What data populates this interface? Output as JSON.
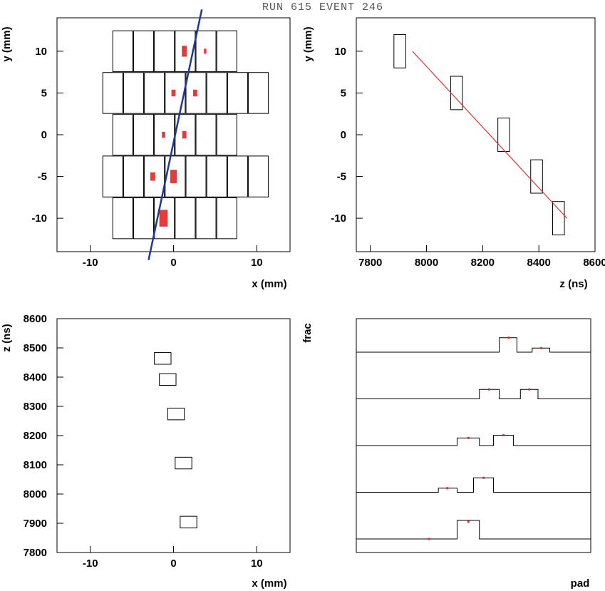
{
  "header": {
    "title": "RUN   615 EVENT   246"
  },
  "chart_data": [
    {
      "type": "scatter",
      "panel": "top-left",
      "xlabel": "x (mm)",
      "ylabel": "y (mm)",
      "xlim": [
        -14,
        14
      ],
      "ylim": [
        -14,
        14
      ],
      "x_ticks": [
        "-10",
        "0",
        "10"
      ],
      "y_ticks": [
        "10",
        "5",
        "0",
        "-5",
        "-10"
      ],
      "pad_grid": [
        {
          "y_center": 10,
          "x_start": -7.3,
          "n": 6
        },
        {
          "y_center": 5,
          "x_start": -8.5,
          "n": 8
        },
        {
          "y_center": 0,
          "x_start": -7.3,
          "n": 6
        },
        {
          "y_center": -5,
          "x_start": -8.5,
          "n": 8
        },
        {
          "y_center": -10,
          "x_start": -7.3,
          "n": 6
        }
      ],
      "pad_size": [
        2.4,
        4.9
      ],
      "hits": [
        {
          "x": 1.3,
          "y": 10.0,
          "w": 0.6,
          "h": 1.3
        },
        {
          "x": 3.8,
          "y": 10.0,
          "w": 0.3,
          "h": 0.6
        },
        {
          "x": 0.0,
          "y": 5.0,
          "w": 0.5,
          "h": 0.8
        },
        {
          "x": 2.6,
          "y": 5.0,
          "w": 0.5,
          "h": 0.8
        },
        {
          "x": -1.2,
          "y": 0.0,
          "w": 0.4,
          "h": 0.7
        },
        {
          "x": 1.3,
          "y": 0.0,
          "w": 0.5,
          "h": 0.9
        },
        {
          "x": -2.5,
          "y": -5.0,
          "w": 0.6,
          "h": 1.0
        },
        {
          "x": 0.0,
          "y": -5.0,
          "w": 0.8,
          "h": 1.6
        },
        {
          "x": -1.2,
          "y": -10.0,
          "w": 1.0,
          "h": 2.0
        }
      ],
      "fit_line": {
        "x": [
          -3.0,
          3.4
        ],
        "y": [
          -15.0,
          15.0
        ],
        "color": "#1f3a93"
      }
    },
    {
      "type": "scatter",
      "panel": "top-right",
      "xlabel": "z (ns)",
      "ylabel": "y (mm)",
      "xlim": [
        7750,
        8600
      ],
      "ylim": [
        -14,
        14
      ],
      "x_ticks": [
        "7800",
        "8000",
        "8200",
        "8400",
        "8600"
      ],
      "y_ticks": [
        "10",
        "5",
        "0",
        "-5",
        "-10"
      ],
      "points": [
        {
          "z": 7905,
          "y": 10.0
        },
        {
          "z": 8107,
          "y": 5.0
        },
        {
          "z": 8275,
          "y": 0.0
        },
        {
          "z": 8392,
          "y": -5.0
        },
        {
          "z": 8470,
          "y": -10.0
        }
      ],
      "box_size": [
        42,
        2.0
      ],
      "fit_line": {
        "z": [
          7950,
          8500
        ],
        "y": [
          10.0,
          -10.0
        ],
        "color": "#e03030"
      }
    },
    {
      "type": "scatter",
      "panel": "bottom-left",
      "xlabel": "x (mm)",
      "ylabel": "z (ns)",
      "xlim": [
        -14,
        14
      ],
      "ylim": [
        7800,
        8600
      ],
      "x_ticks": [
        "-10",
        "0",
        "10"
      ],
      "y_ticks": [
        "8600",
        "8500",
        "8400",
        "8300",
        "8200",
        "8100",
        "8000",
        "7900",
        "7800"
      ],
      "points": [
        {
          "x": -1.3,
          "z": 8464
        },
        {
          "x": -0.7,
          "z": 8392
        },
        {
          "x": 0.3,
          "z": 8274
        },
        {
          "x": 1.2,
          "z": 8106
        },
        {
          "x": 1.8,
          "z": 7904
        }
      ],
      "box_size": [
        2.0,
        40
      ]
    },
    {
      "type": "line",
      "panel": "bottom-right",
      "xlabel": "pad",
      "ylabel": "frac",
      "pad_range": [
        0,
        10
      ],
      "row_spacing": 1.0,
      "rows": [
        {
          "bins": [
            {
              "x0": 6.1,
              "x1": 6.85,
              "h": 0.78
            },
            {
              "x0": 7.5,
              "x1": 8.25,
              "h": 0.22
            }
          ],
          "markers": [
            {
              "x": 6.5,
              "h": 0.78
            },
            {
              "x": 7.88,
              "h": 0.22
            }
          ]
        },
        {
          "bins": [
            {
              "x0": 5.25,
              "x1": 6.1,
              "h": 0.51
            },
            {
              "x0": 7.0,
              "x1": 7.75,
              "h": 0.51
            }
          ],
          "markers": [
            {
              "x": 5.67,
              "h": 0.51
            },
            {
              "x": 7.38,
              "h": 0.51
            }
          ]
        },
        {
          "bins": [
            {
              "x0": 4.3,
              "x1": 5.25,
              "h": 0.41
            },
            {
              "x0": 5.85,
              "x1": 6.7,
              "h": 0.56
            }
          ],
          "markers": [
            {
              "x": 4.78,
              "h": 0.41
            },
            {
              "x": 6.28,
              "h": 0.56
            }
          ]
        },
        {
          "bins": [
            {
              "x0": 3.5,
              "x1": 4.3,
              "h": 0.22
            },
            {
              "x0": 5.0,
              "x1": 5.85,
              "h": 0.78
            }
          ],
          "markers": [
            {
              "x": 3.88,
              "h": 0.22
            },
            {
              "x": 5.43,
              "h": 0.78
            }
          ]
        },
        {
          "bins": [
            {
              "x0": 4.3,
              "x1": 5.25,
              "h": 1.0
            }
          ],
          "markers": [
            {
              "x": 3.1,
              "h": 0.0
            },
            {
              "x": 4.78,
              "h": 0.93
            }
          ]
        }
      ],
      "marker_color": "#e03030"
    }
  ]
}
